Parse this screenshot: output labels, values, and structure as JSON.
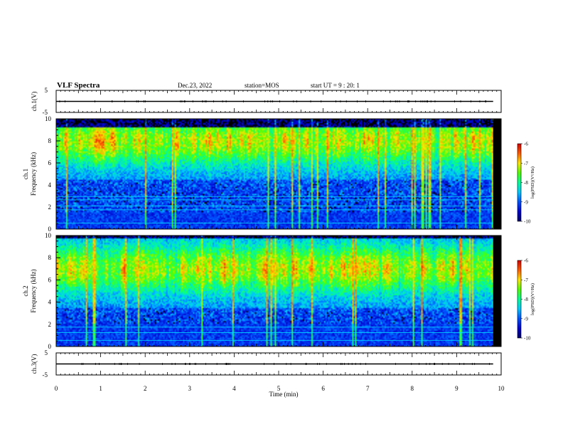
{
  "header": {
    "title": "VLF Spectra",
    "date": "Dec.23, 2022",
    "station": "station=MOS",
    "start": "start UT = 9 : 20: 1"
  },
  "chart_data": [
    {
      "type": "line",
      "id": "ch1_waveform",
      "ylabel": "ch.1(V)",
      "ylim": [
        -5,
        5
      ],
      "yticks": [
        "5",
        "-5"
      ],
      "xlim": [
        0,
        10
      ],
      "series": [
        {
          "values_const": 0
        }
      ]
    },
    {
      "type": "heatmap",
      "id": "ch1_spectrogram",
      "ylabel": "ch.1 Frequency (kHz)",
      "ylabel_lines": [
        "ch.1",
        "Frequency (kHz)"
      ],
      "xlim": [
        0,
        10
      ],
      "data_xmax": 9.82,
      "ylim": [
        0,
        10
      ],
      "yticks": [
        "0",
        "2",
        "4",
        "6",
        "8",
        "10"
      ],
      "band_low_khz": 1.6,
      "band_high_khz": 9.2,
      "peak_khz": 8.0,
      "line_khz": [
        0.55,
        1.75,
        2.1,
        2.65,
        2.95
      ],
      "colorbar": {
        "label": "log(PSD)(V²/Hz)",
        "min": -10,
        "max": -6,
        "ticks": [
          "-6",
          "-7",
          "-8",
          "-9",
          "-10"
        ]
      }
    },
    {
      "type": "heatmap",
      "id": "ch2_spectrogram",
      "ylabel": "ch.2 Frequency (kHz)",
      "ylabel_lines": [
        "ch.2",
        "Frequency (kHz)"
      ],
      "xlim": [
        0,
        10
      ],
      "data_xmax": 9.82,
      "ylim": [
        0,
        10
      ],
      "yticks": [
        "0",
        "2",
        "4",
        "6",
        "8",
        "10"
      ],
      "band_low_khz": 2.0,
      "band_high_khz": 9.8,
      "peak_khz": 7.0,
      "line_khz": [
        0.55,
        1.25,
        1.75
      ],
      "colorbar": {
        "label": "log(PSD)(V²/Hz)",
        "min": -10,
        "max": -6,
        "ticks": [
          "-6",
          "-7",
          "-8",
          "-9",
          "-10"
        ]
      }
    },
    {
      "type": "line",
      "id": "ch3_waveform",
      "ylabel": "ch.3(V)",
      "ylim": [
        -5,
        5
      ],
      "yticks": [
        "5",
        "-5"
      ],
      "xlim": [
        0,
        10
      ],
      "series": [
        {
          "values_const": 0
        }
      ]
    }
  ],
  "xaxis": {
    "label": "Time (min)",
    "ticks": [
      "0",
      "1",
      "2",
      "3",
      "4",
      "5",
      "6",
      "7",
      "8",
      "9",
      "10"
    ]
  },
  "colors": {
    "colormap": [
      "#000066",
      "#0000cc",
      "#0050ff",
      "#00c8ff",
      "#00ff96",
      "#50ff00",
      "#ffe600",
      "#ff5a00",
      "#d20000",
      "#ffffff"
    ],
    "frame": "#000000",
    "spectro_floor": "#000000"
  }
}
